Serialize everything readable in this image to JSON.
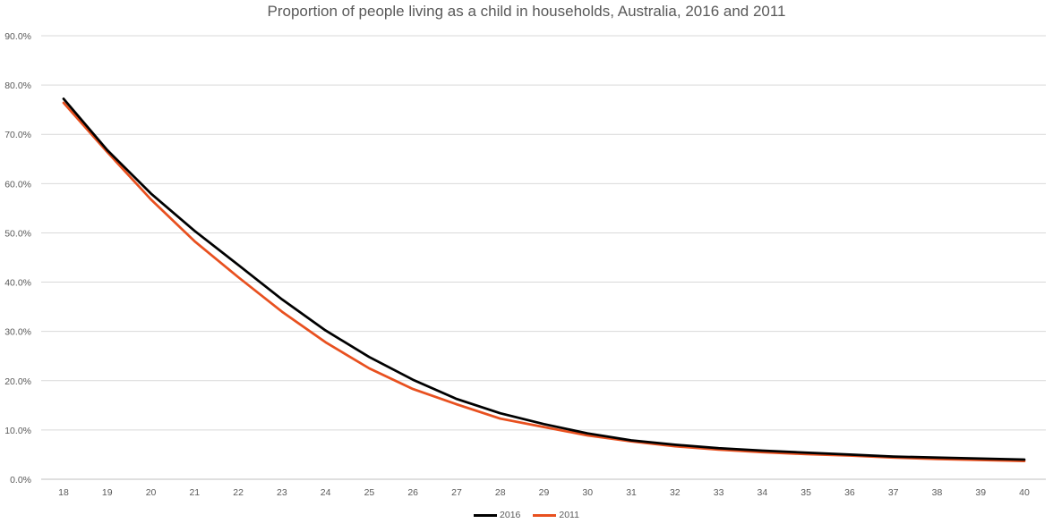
{
  "chart_data": {
    "type": "line",
    "title": "Proportion of people living as a child in households, Australia, 2016 and 2011",
    "xlabel": "",
    "ylabel": "",
    "categories": [
      "18",
      "19",
      "20",
      "21",
      "22",
      "23",
      "24",
      "25",
      "26",
      "27",
      "28",
      "29",
      "30",
      "31",
      "32",
      "33",
      "34",
      "35",
      "36",
      "37",
      "38",
      "39",
      "40"
    ],
    "ylim": [
      0,
      90
    ],
    "yticks": [
      "0.0%",
      "10.0%",
      "20.0%",
      "30.0%",
      "40.0%",
      "50.0%",
      "60.0%",
      "70.0%",
      "80.0%",
      "90.0%"
    ],
    "grid": true,
    "legend_position": "bottom",
    "series": [
      {
        "name": "2016",
        "color": "#000000",
        "values": [
          77.2,
          66.8,
          58.0,
          50.4,
          43.5,
          36.5,
          30.2,
          24.8,
          20.2,
          16.3,
          13.4,
          11.2,
          9.3,
          7.9,
          7.0,
          6.3,
          5.8,
          5.4,
          5.0,
          4.6,
          4.4,
          4.2,
          4.0
        ]
      },
      {
        "name": "2011",
        "color": "#e8501f",
        "values": [
          76.4,
          66.4,
          56.8,
          48.3,
          41.0,
          34.0,
          27.8,
          22.5,
          18.3,
          15.2,
          12.3,
          10.6,
          8.9,
          7.7,
          6.7,
          6.0,
          5.5,
          5.1,
          4.8,
          4.4,
          4.1,
          3.9,
          3.7
        ]
      }
    ]
  }
}
